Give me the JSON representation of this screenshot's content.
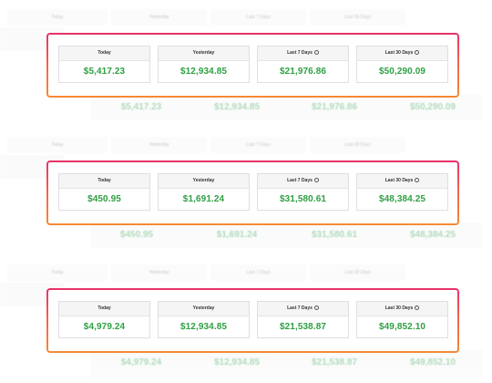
{
  "periods": [
    {
      "label": "Today",
      "has_info_icon": false
    },
    {
      "label": "Yesterday",
      "has_info_icon": false
    },
    {
      "label": "Last 7 Days",
      "has_info_icon": true
    },
    {
      "label": "Last 30 Days",
      "has_info_icon": true
    }
  ],
  "icons": {
    "info": "info-circle-icon"
  },
  "colors": {
    "value_green": "#2ea043",
    "border_top": "#e8306a",
    "border_bottom": "#f58a35"
  },
  "sections": [
    {
      "values": [
        "$5,417.23",
        "$12,934.85",
        "$21,976.86",
        "$50,290.09"
      ]
    },
    {
      "values": [
        "$450.95",
        "$1,691.24",
        "$31,580.61",
        "$48,384.25"
      ]
    },
    {
      "values": [
        "$4,979.24",
        "$12,934.85",
        "$21,538.87",
        "$49,852.10"
      ]
    }
  ]
}
